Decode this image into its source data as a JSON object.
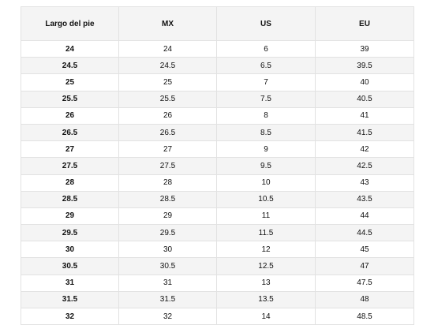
{
  "table": {
    "headers": [
      "Largo del pie",
      "MX",
      "US",
      "EU"
    ],
    "rows": [
      [
        "24",
        "24",
        "6",
        "39"
      ],
      [
        "24.5",
        "24.5",
        "6.5",
        "39.5"
      ],
      [
        "25",
        "25",
        "7",
        "40"
      ],
      [
        "25.5",
        "25.5",
        "7.5",
        "40.5"
      ],
      [
        "26",
        "26",
        "8",
        "41"
      ],
      [
        "26.5",
        "26.5",
        "8.5",
        "41.5"
      ],
      [
        "27",
        "27",
        "9",
        "42"
      ],
      [
        "27.5",
        "27.5",
        "9.5",
        "42.5"
      ],
      [
        "28",
        "28",
        "10",
        "43"
      ],
      [
        "28.5",
        "28.5",
        "10.5",
        "43.5"
      ],
      [
        "29",
        "29",
        "11",
        "44"
      ],
      [
        "29.5",
        "29.5",
        "11.5",
        "44.5"
      ],
      [
        "30",
        "30",
        "12",
        "45"
      ],
      [
        "30.5",
        "30.5",
        "12.5",
        "47"
      ],
      [
        "31",
        "31",
        "13",
        "47.5"
      ],
      [
        "31.5",
        "31.5",
        "13.5",
        "48"
      ],
      [
        "32",
        "32",
        "14",
        "48.5"
      ]
    ]
  },
  "colors": {
    "header_bg": "#f4f4f4",
    "stripe_bg": "#f4f4f4",
    "border": "#e2e2e2",
    "text": "#111111"
  }
}
